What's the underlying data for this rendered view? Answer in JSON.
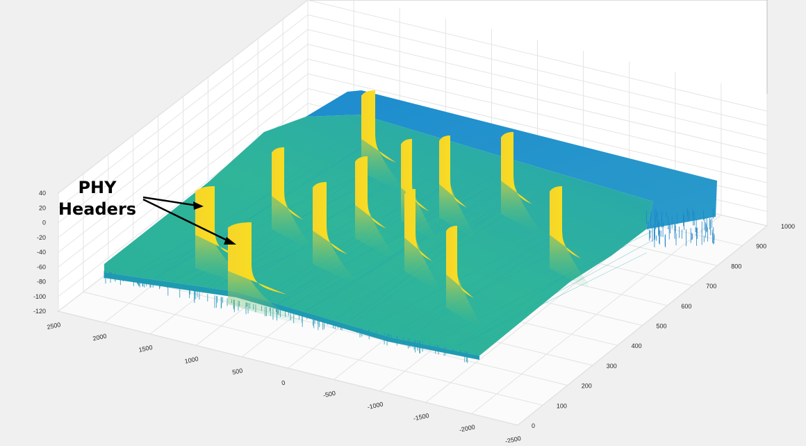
{
  "chart_data": {
    "type": "surface",
    "title": "",
    "xlabel": "",
    "ylabel": "",
    "zlabel": "",
    "x_ticks": [
      "2500",
      "2000",
      "1500",
      "1000",
      "500",
      "0",
      "-500",
      "-1000",
      "-1500",
      "-2000",
      "-2500"
    ],
    "y_ticks": [
      "0",
      "100",
      "200",
      "300",
      "400",
      "500",
      "600",
      "700",
      "800",
      "900",
      "1000"
    ],
    "z_ticks": [
      "40",
      "20",
      "0",
      "-20",
      "-40",
      "-60",
      "-80",
      "-100",
      "-120"
    ],
    "xlim": [
      -2500,
      2500
    ],
    "ylim": [
      0,
      1000
    ],
    "zlim": [
      -120,
      40
    ],
    "grid": true,
    "colormap": "parula",
    "surface": {
      "baseline_level_db": -55,
      "noise_floor_db": -110,
      "peak_level_db": 40
    },
    "annotation": {
      "lines": [
        "PHY",
        "Headers"
      ],
      "arrow_count": 2
    },
    "colors": {
      "background": "#f0f0f0",
      "axes_face": "#ffffff",
      "grid": "#dcdcdc",
      "surface_low": "#1f8fd0",
      "surface_mid": "#2fb5a0",
      "surface_high": "#f9e01e"
    }
  }
}
